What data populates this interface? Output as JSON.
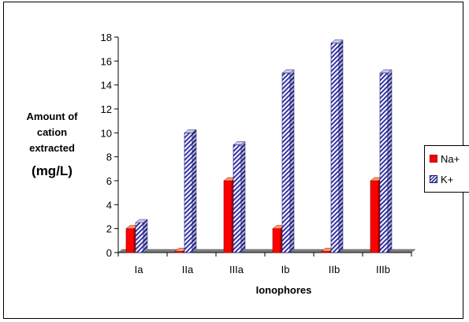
{
  "chart_data": {
    "type": "bar",
    "categories": [
      "Ia",
      "IIa",
      "IIIa",
      "Ib",
      "IIb",
      "IIIb"
    ],
    "series": [
      {
        "name": "Na+",
        "values": [
          2.0,
          0.1,
          6.0,
          2.0,
          0.1,
          6.0
        ],
        "color": "#ff0000"
      },
      {
        "name": "K+",
        "values": [
          2.5,
          10.0,
          9.0,
          15.0,
          17.5,
          15.0
        ],
        "color": "#3333aa"
      }
    ],
    "title": "",
    "xlabel": "Ionophores",
    "ylabel_lines": [
      "Amount of",
      "cation",
      "extracted",
      "(mg/L)"
    ],
    "ylim": [
      0,
      18
    ],
    "yticks": [
      "0",
      "2",
      "4",
      "6",
      "8",
      "10",
      "12",
      "14",
      "16",
      "18"
    ],
    "grid": false,
    "legend_position": "right"
  }
}
